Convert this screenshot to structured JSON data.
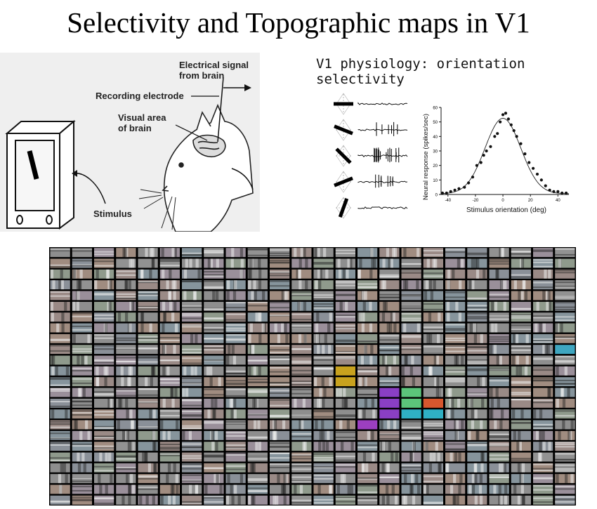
{
  "title": "Selectivity and Topographic maps in V1",
  "cat_diagram": {
    "labels": {
      "electrical_signal": "Electrical signal\nfrom brain",
      "recording_electrode": "Recording electrode",
      "visual_area": "Visual area\nof brain",
      "stimulus": "Stimulus"
    }
  },
  "physiology": {
    "title": "V1 physiology: orientation selectivity",
    "stimulus_orientations_deg": [
      0,
      -22,
      -45,
      22,
      70
    ],
    "spike_counts": [
      0,
      6,
      14,
      8,
      0
    ]
  },
  "chart_data": {
    "type": "scatter",
    "xlabel": "Stimulus orientation (deg)",
    "ylabel": "Neural response (spikes/sec)",
    "xlim": [
      -45,
      48
    ],
    "ylim": [
      0,
      60
    ],
    "xticks": [
      "-40",
      "-20",
      "0",
      "20",
      "40"
    ],
    "yticks": [
      "0",
      "10",
      "20",
      "30",
      "40",
      "50",
      "60"
    ],
    "series": [
      {
        "x": [
          -44,
          -41,
          -38,
          -35,
          -32,
          -28,
          -25,
          -22,
          -19,
          -16,
          -14,
          -12,
          -9,
          -6,
          -4,
          -2,
          0,
          2,
          4,
          6,
          8,
          10,
          13,
          16,
          19,
          22,
          25,
          28,
          31,
          34,
          37,
          40,
          43,
          46
        ],
        "y": [
          1,
          1,
          2,
          3,
          4,
          5,
          8,
          12,
          20,
          22,
          27,
          30,
          33,
          40,
          42,
          50,
          55,
          56,
          52,
          48,
          44,
          40,
          35,
          28,
          22,
          18,
          14,
          10,
          6,
          3,
          2,
          2,
          1,
          1
        ]
      }
    ],
    "fit_curve": {
      "amplitude": 52,
      "center": 0,
      "width": 13
    }
  },
  "map": {
    "cols": 24,
    "rows": 24,
    "highlights": [
      {
        "color": "#c8a21e"
      },
      {
        "color": "#c8a21e"
      },
      {
        "color": "#8a3fc4"
      },
      {
        "color": "#8a3fc4"
      },
      {
        "color": "#8a3fc4"
      },
      {
        "color": "#5cc47a"
      },
      {
        "color": "#5cc47a"
      },
      {
        "color": "#d6572e"
      },
      {
        "color": "#2fb0c4"
      },
      {
        "color": "#2fb0c4"
      },
      {
        "color": "#9c3fc0"
      },
      {
        "color": "#3fa6c0"
      }
    ]
  }
}
